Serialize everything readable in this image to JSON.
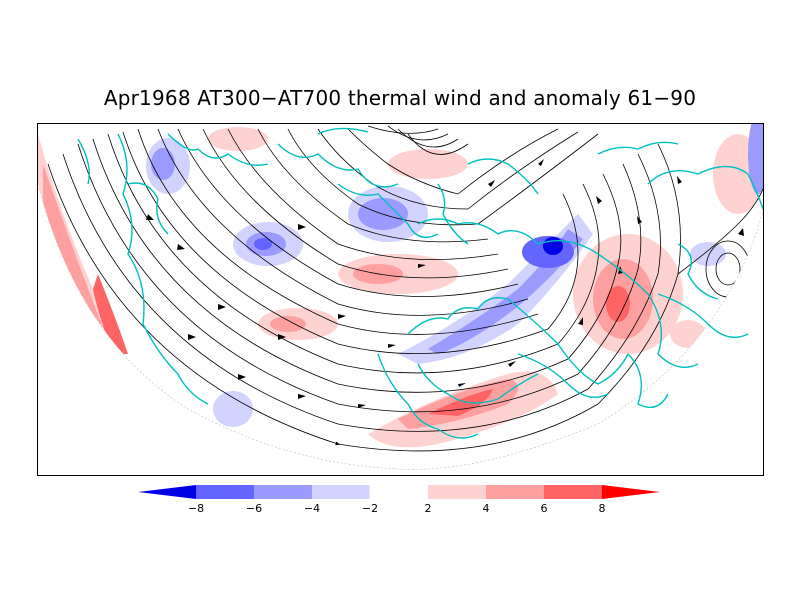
{
  "title": "Apr1968 AT300−AT700 thermal wind and anomaly 61−90",
  "legend": {
    "tick_labels": [
      "−8",
      "−6",
      "−4",
      "−2",
      "2",
      "4",
      "6",
      "8"
    ],
    "colors": [
      "#0000e6",
      "#6464ff",
      "#9a9aff",
      "#d2d2ff",
      "#ffffff",
      "#ffd2d2",
      "#ffa0a0",
      "#ff6464",
      "#ff0000"
    ]
  },
  "map": {
    "projection": "polar-stereographic-northern-hemisphere",
    "coastline_color": "#00c0c0",
    "streamline_color": "#000000"
  }
}
